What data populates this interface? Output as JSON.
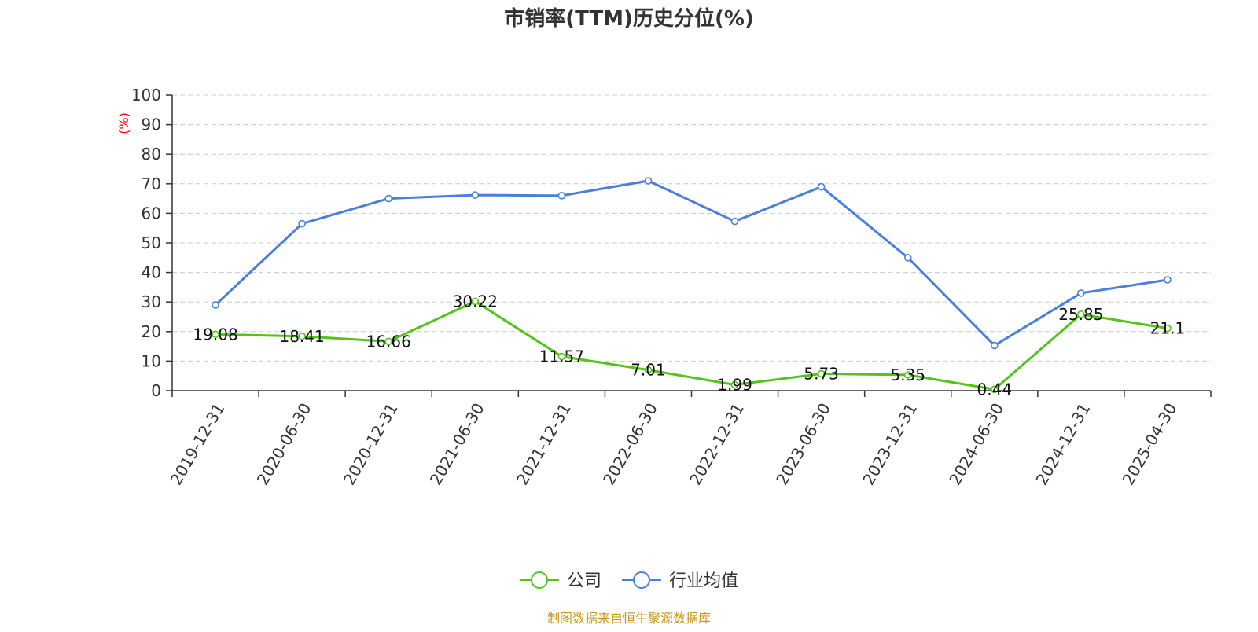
{
  "chart_data": {
    "type": "line",
    "title": "市销率(TTM)历史分位(%)",
    "ylabel": "(%)",
    "ylim": [
      0,
      100
    ],
    "yticks": [
      0,
      10,
      20,
      30,
      40,
      50,
      60,
      70,
      80,
      90,
      100
    ],
    "grid": true,
    "legend_position": "bottom-center",
    "categories": [
      "2019-12-31",
      "2020-06-30",
      "2020-12-31",
      "2021-06-30",
      "2021-12-31",
      "2022-06-30",
      "2022-12-31",
      "2023-06-30",
      "2023-12-31",
      "2024-06-30",
      "2024-12-31",
      "2025-04-30"
    ],
    "series": [
      {
        "name": "公司",
        "color": "#52c41a",
        "show_labels": true,
        "values": [
          19.08,
          18.41,
          16.66,
          30.22,
          11.57,
          7.01,
          1.99,
          5.73,
          5.35,
          0.44,
          25.85,
          21.1
        ],
        "labels": [
          "19.08",
          "18.41",
          "16.66",
          "30.22",
          "11.57",
          "7.01",
          "1.99",
          "5.73",
          "5.35",
          "0.44",
          "25.85",
          "21.1"
        ]
      },
      {
        "name": "行业均值",
        "color": "#4a7fdc",
        "show_labels": false,
        "values": [
          29,
          56.5,
          65,
          66.2,
          66,
          71,
          57.3,
          69,
          45,
          15.3,
          33,
          37.5
        ]
      }
    ]
  },
  "footer": {
    "source": "制图数据来自恒生聚源数据库"
  }
}
